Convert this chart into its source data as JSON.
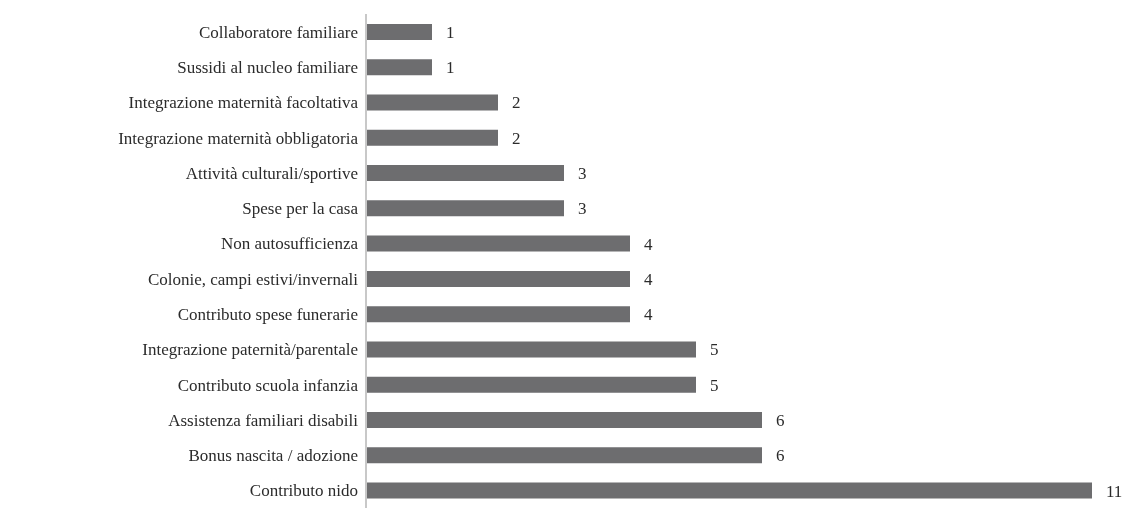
{
  "chart_data": {
    "type": "bar",
    "orientation": "horizontal",
    "categories": [
      "Collaboratore familiare",
      "Sussidi al nucleo familiare",
      "Integrazione maternità facoltativa",
      "Integrazione maternità obbligatoria",
      "Attività culturali/sportive",
      "Spese per la casa",
      "Non autosufficienza",
      "Colonie, campi estivi/invernali",
      "Contributo spese funerarie",
      "Integrazione paternità/parentale",
      "Contributo scuola infanzia",
      "Assistenza familiari disabili",
      "Bonus nascita / adozione",
      "Contributo nido"
    ],
    "values": [
      1,
      1,
      2,
      2,
      3,
      3,
      4,
      4,
      4,
      5,
      5,
      6,
      6,
      11
    ],
    "color": "#6d6d6f",
    "data_labels": true
  }
}
